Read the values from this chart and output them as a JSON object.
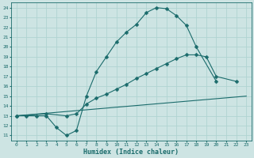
{
  "xlabel": "Humidex (Indice chaleur)",
  "xlim": [
    -0.5,
    23.5
  ],
  "ylim": [
    10.5,
    24.5
  ],
  "xticks": [
    0,
    1,
    2,
    3,
    4,
    5,
    6,
    7,
    8,
    9,
    10,
    11,
    12,
    13,
    14,
    15,
    16,
    17,
    18,
    19,
    20,
    21,
    22,
    23
  ],
  "yticks": [
    11,
    12,
    13,
    14,
    15,
    16,
    17,
    18,
    19,
    20,
    21,
    22,
    23,
    24
  ],
  "bg_color": "#cde4e3",
  "line_color": "#1a6b6b",
  "grid_color": "#b0d4d2",
  "curve1_x": [
    0,
    1,
    2,
    3,
    4,
    5,
    6,
    7,
    8,
    9,
    10,
    11,
    12,
    13,
    14,
    15,
    16,
    17,
    18,
    20
  ],
  "curve1_y": [
    13.0,
    13.0,
    13.0,
    13.0,
    11.8,
    11.0,
    11.5,
    15.0,
    17.5,
    19.0,
    20.5,
    21.5,
    22.3,
    23.5,
    24.0,
    23.9,
    23.2,
    22.2,
    20.0,
    16.5
  ],
  "curve2_x": [
    0,
    3,
    5,
    6,
    7,
    8,
    9,
    10,
    11,
    12,
    13,
    14,
    15,
    16,
    17,
    18,
    19,
    20,
    22
  ],
  "curve2_y": [
    13.0,
    13.2,
    13.0,
    13.2,
    14.2,
    14.8,
    15.2,
    15.7,
    16.2,
    16.8,
    17.3,
    17.8,
    18.3,
    18.8,
    19.2,
    19.2,
    19.0,
    17.0,
    16.5
  ],
  "curve3_x": [
    0,
    23
  ],
  "curve3_y": [
    13.0,
    15.0
  ],
  "markersize": 2.5
}
